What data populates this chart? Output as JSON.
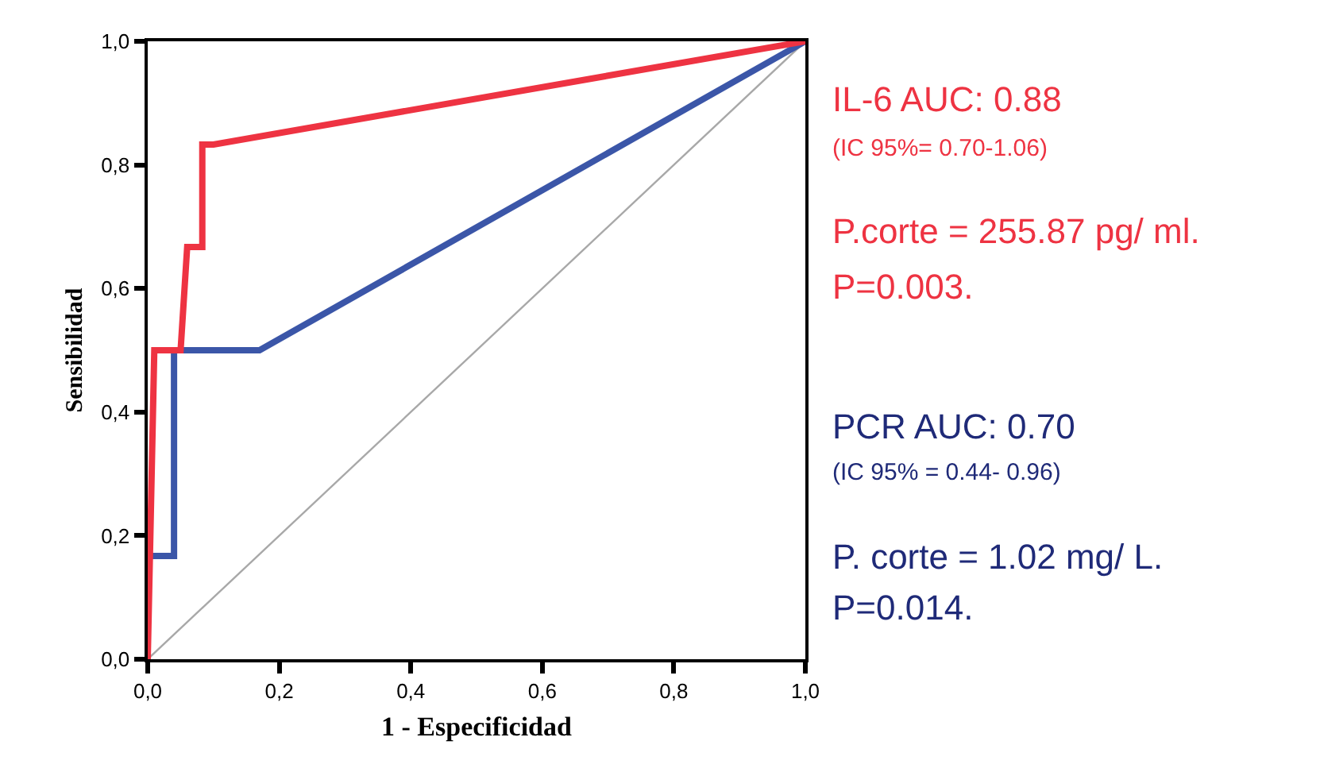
{
  "chart_data": {
    "type": "line",
    "xlabel": "1 - Especificidad",
    "ylabel": "Sensibilidad",
    "xlim": [
      0,
      1
    ],
    "ylim": [
      0,
      1
    ],
    "xticks": [
      {
        "value": 0,
        "label": "0,0"
      },
      {
        "value": 0.2,
        "label": "0,2"
      },
      {
        "value": 0.4,
        "label": "0,4"
      },
      {
        "value": 0.6,
        "label": "0,6"
      },
      {
        "value": 0.8,
        "label": "0,8"
      },
      {
        "value": 1,
        "label": "1,0"
      }
    ],
    "yticks": [
      {
        "value": 0,
        "label": "0,0"
      },
      {
        "value": 0.2,
        "label": "0,2"
      },
      {
        "value": 0.4,
        "label": "0,4"
      },
      {
        "value": 0.6,
        "label": "0,6"
      },
      {
        "value": 0.8,
        "label": "0,8"
      },
      {
        "value": 1,
        "label": "1,0"
      }
    ],
    "marker": "none",
    "line_style": "solid",
    "series": [
      {
        "color": "#a8a8a8",
        "x": [
          0,
          1
        ],
        "values": [
          0,
          1
        ]
      },
      {
        "color": "#3b56a8",
        "x": [
          0,
          0,
          0.04,
          0.04,
          0.17,
          1
        ],
        "values": [
          0,
          0.167,
          0.167,
          0.5,
          0.5,
          1
        ]
      },
      {
        "color": "#ee3342",
        "x": [
          0,
          0.01,
          0.05,
          0.06,
          0.083,
          0.083,
          0.1,
          1
        ],
        "values": [
          0,
          0.5,
          0.5,
          0.667,
          0.667,
          0.833,
          0.833,
          1
        ]
      }
    ],
    "annotations": [
      "IL-6 AUC: 0.88",
      "(IC 95%= 0.70-1.06)",
      "P.corte = 255.87 pg/ ml.",
      "P=0.003.",
      "PCR AUC: 0.70",
      "(IC 95% = 0.44- 0.96)",
      "P. corte = 1.02 mg/ L.",
      "P=0.014."
    ]
  }
}
